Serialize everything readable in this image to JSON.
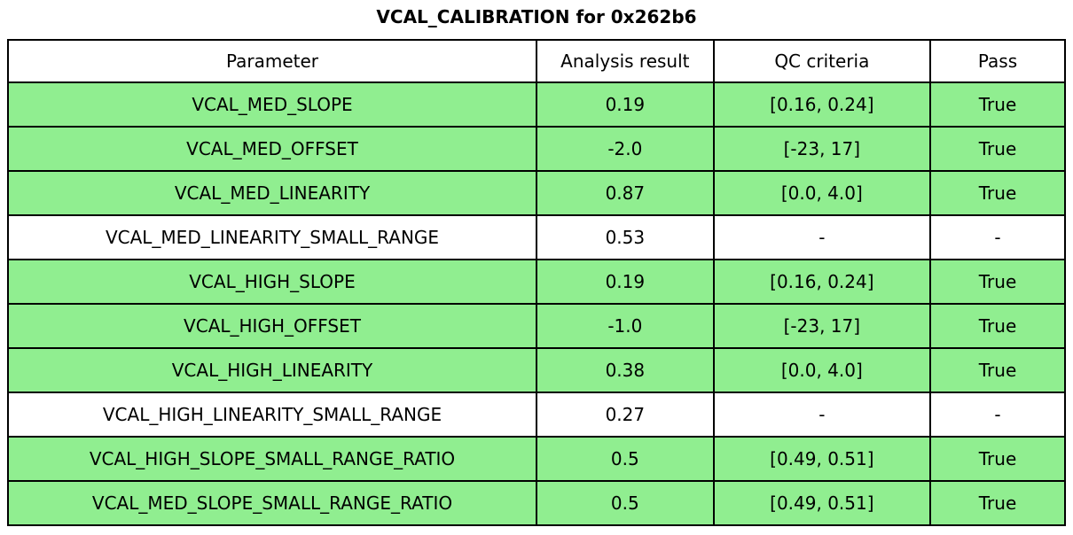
{
  "colors": {
    "pass_row_fill": "#90EE90",
    "neutral_row_fill": "#ffffff",
    "border": "#000000",
    "text": "#000000",
    "background": "#ffffff"
  },
  "chart_data": {
    "type": "table",
    "title": "VCAL_CALIBRATION for 0x262b6",
    "columns": [
      "Parameter",
      "Analysis result",
      "QC criteria",
      "Pass"
    ],
    "rows": [
      [
        "VCAL_MED_SLOPE",
        "0.19",
        "[0.16, 0.24]",
        "True"
      ],
      [
        "VCAL_MED_OFFSET",
        "-2.0",
        "[-23, 17]",
        "True"
      ],
      [
        "VCAL_MED_LINEARITY",
        "0.87",
        "[0.0, 4.0]",
        "True"
      ],
      [
        "VCAL_MED_LINEARITY_SMALL_RANGE",
        "0.53",
        "-",
        "-"
      ],
      [
        "VCAL_HIGH_SLOPE",
        "0.19",
        "[0.16, 0.24]",
        "True"
      ],
      [
        "VCAL_HIGH_OFFSET",
        "-1.0",
        "[-23, 17]",
        "True"
      ],
      [
        "VCAL_HIGH_LINEARITY",
        "0.38",
        "[0.0, 4.0]",
        "True"
      ],
      [
        "VCAL_HIGH_LINEARITY_SMALL_RANGE",
        "0.27",
        "-",
        "-"
      ],
      [
        "VCAL_HIGH_SLOPE_SMALL_RANGE_RATIO",
        "0.5",
        "[0.49, 0.51]",
        "True"
      ],
      [
        "VCAL_MED_SLOPE_SMALL_RANGE_RATIO",
        "0.5",
        "[0.49, 0.51]",
        "True"
      ]
    ],
    "row_fill_colors": [
      "#90EE90",
      "#90EE90",
      "#90EE90",
      "#ffffff",
      "#90EE90",
      "#90EE90",
      "#90EE90",
      "#ffffff",
      "#90EE90",
      "#90EE90"
    ],
    "header_fill_color": "#ffffff",
    "grid": true,
    "legend": "none"
  }
}
